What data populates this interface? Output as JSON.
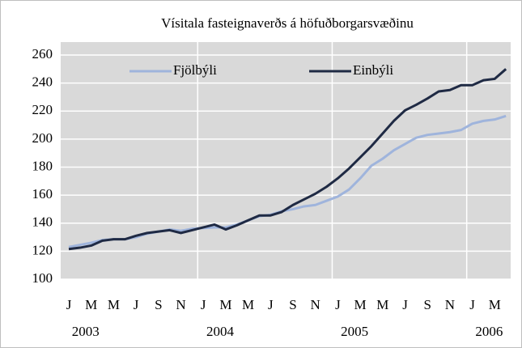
{
  "chart_data": {
    "type": "line",
    "title": "Vísitala fasteignaverðs á höfuðborgarsvæðinu",
    "categories": [
      "J",
      null,
      "M",
      null,
      "M",
      null,
      "J",
      null,
      "S",
      null,
      "N",
      null,
      "J",
      null,
      "M",
      null,
      "M",
      null,
      "J",
      null,
      "S",
      null,
      "N",
      null,
      "J",
      null,
      "M",
      null,
      "M",
      null,
      "J",
      null,
      "S",
      null,
      "N",
      null,
      "J",
      null,
      "M",
      null
    ],
    "year_labels": [
      "2003",
      "2004",
      "2005",
      "2006"
    ],
    "series": [
      {
        "name": "Fjölbýli",
        "color": "#9fb4dc",
        "values": [
          123,
          124.5,
          126,
          128,
          128.5,
          128.5,
          130,
          132.5,
          134,
          135.5,
          134.5,
          136,
          136.5,
          137,
          137,
          139,
          142,
          145,
          146,
          148.5,
          150,
          152,
          153,
          156,
          159,
          164,
          172,
          181,
          186,
          192,
          196.5,
          201,
          203,
          204,
          205,
          206.5,
          211,
          213,
          214,
          216.5
        ]
      },
      {
        "name": "Einbýli",
        "color": "#1f2a44",
        "values": [
          121.5,
          122.5,
          124,
          127.5,
          128.5,
          128.5,
          131,
          133,
          134,
          135,
          133,
          135,
          137,
          139,
          135.5,
          138.5,
          142,
          145.5,
          145.5,
          148,
          153,
          157,
          161,
          166,
          172,
          179,
          187,
          195,
          204,
          213,
          220.5,
          224.5,
          229,
          234,
          235,
          238.5,
          238.5,
          242,
          243,
          250
        ]
      }
    ],
    "ylim": [
      100,
      260
    ],
    "yticks": [
      100,
      120,
      140,
      160,
      180,
      200,
      220,
      240,
      260
    ],
    "grid": true,
    "legend": "top"
  }
}
